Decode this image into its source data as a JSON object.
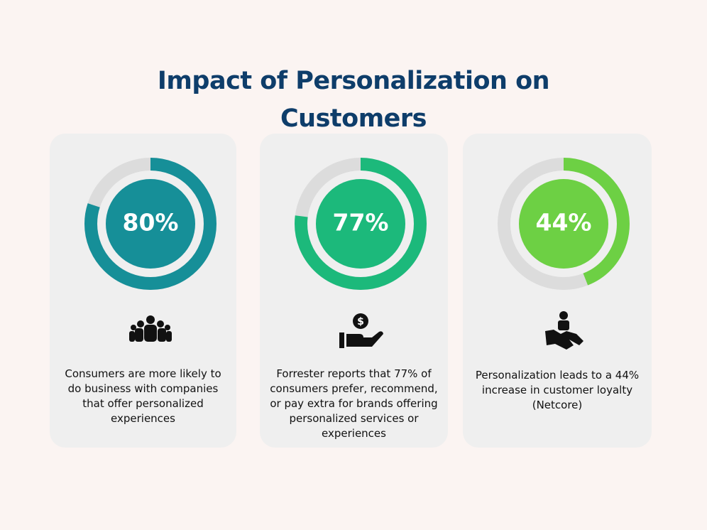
{
  "title": "Impact of Personalization on Customers",
  "cards": [
    {
      "value": 80,
      "value_label": "80%",
      "color": "#168f98",
      "text": "Consumers are more likely to do business with companies that offer personalized experiences"
    },
    {
      "value": 77,
      "value_label": "77%",
      "color": "#1cb97b",
      "text": "Forrester reports that 77% of consumers prefer, recommend, or pay extra for brands offering personalized services or experiences"
    },
    {
      "value": 44,
      "value_label": "44%",
      "color": "#6dd044",
      "text": "Personalization leads to a 44% increase in customer loyalty (Netcore)"
    }
  ]
}
